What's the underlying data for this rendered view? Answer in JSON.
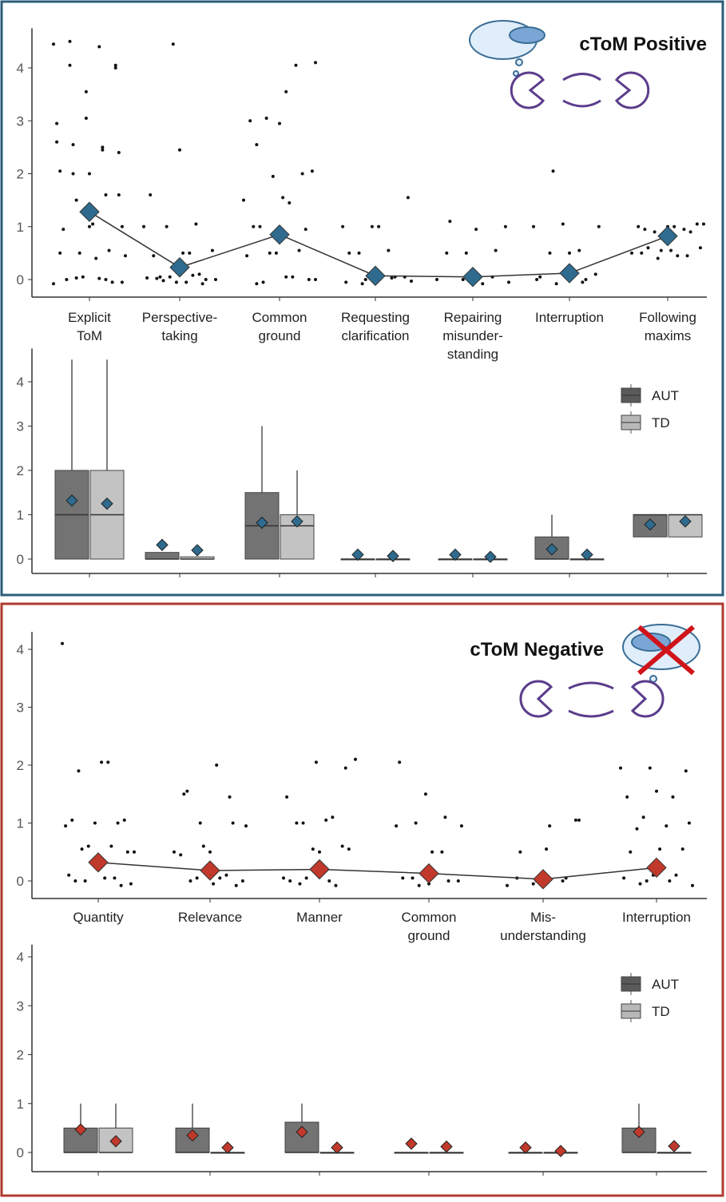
{
  "chart_data": [
    {
      "type": "dot",
      "title": "cToM Positive",
      "mean_color": "#2e6b8e",
      "categories": [
        [
          "Explicit",
          "ToM"
        ],
        [
          "Perspective-",
          "taking"
        ],
        [
          "Common",
          "ground"
        ],
        [
          "Requesting",
          "clarification"
        ],
        [
          "Repairing",
          "misunder-",
          "standing"
        ],
        [
          "Interruption"
        ],
        [
          "Following",
          "maxims"
        ]
      ],
      "means": [
        1.28,
        0.23,
        0.85,
        0.07,
        0.05,
        0.12,
        0.82
      ],
      "points": [
        [
          4.45,
          4.4,
          4.05,
          4.05,
          3.05,
          2.6,
          2.5,
          2.55,
          2.4,
          2.0,
          2.05,
          1.6,
          1.5,
          1.0,
          1.05,
          0.95,
          0.55,
          0.5,
          0.45,
          0.4,
          0.0,
          -0.05,
          0.05,
          -0.08,
          0.02,
          4.5,
          4.0,
          3.55,
          2.95,
          2.45,
          2.0,
          1.6,
          1.0,
          0.5,
          0,
          0.03,
          -0.05
        ],
        [
          2.45,
          1.6,
          1.05,
          1.0,
          0.55,
          0.5,
          0.45,
          0.1,
          0.05,
          0,
          -0.05,
          0.02,
          -0.08,
          4.45,
          1.0,
          0.5,
          0.05,
          0,
          -0.05,
          0.03,
          0.08,
          -0.02
        ],
        [
          4.1,
          3.55,
          2.55,
          2.0,
          1.95,
          1.5,
          1.45,
          1.0,
          0.95,
          0.5,
          0.45,
          0.05,
          -0.05,
          0,
          2.95,
          3.0,
          4.05,
          3.05,
          2.05,
          1.55,
          1.0,
          0.55,
          0.5,
          0,
          0.05,
          -0.08
        ],
        [
          1.0,
          1.0,
          0.55,
          0.5,
          0.05,
          0,
          -0.05,
          0.03,
          -0.08,
          1.55,
          1.0,
          0.5,
          0.05,
          0,
          -0.03
        ],
        [
          1.0,
          0.95,
          0.5,
          0.05,
          0,
          -0.05,
          0.03,
          1.1,
          0.55,
          0.5,
          0,
          -0.08
        ],
        [
          1.05,
          1.0,
          0.55,
          0.5,
          0.1,
          0.05,
          0,
          -0.05,
          2.05,
          1.0,
          0.5,
          0.05,
          0,
          -0.08
        ],
        [
          1.05,
          1.0,
          1.0,
          0.95,
          0.9,
          0.6,
          0.55,
          0.5,
          0.45,
          0.4,
          1.05,
          1.0,
          0.95,
          0.9,
          0.55,
          0.5,
          0.45,
          0.6
        ]
      ],
      "ylim": [
        -0.2,
        4.75
      ],
      "yticks": [
        0,
        1,
        2,
        3,
        4
      ]
    },
    {
      "type": "box",
      "mean_color": "#2e6b8e",
      "series": [
        {
          "name": "AUT",
          "color": "#5a5a5a",
          "q1": [
            0,
            0,
            0,
            0,
            0,
            0,
            0.5
          ],
          "median": [
            1,
            0,
            0.75,
            0,
            0,
            0,
            1
          ],
          "q3": [
            2,
            0.15,
            1.5,
            0,
            0,
            0.5,
            1
          ],
          "whisker_high": [
            4.5,
            0.15,
            3,
            0,
            0,
            1,
            1
          ],
          "mean": [
            1.32,
            0.32,
            0.82,
            0.1,
            0.1,
            0.22,
            0.78
          ]
        },
        {
          "name": "TD",
          "color": "#b8b8b8",
          "q1": [
            0,
            0,
            0,
            0,
            0,
            0,
            0.5
          ],
          "median": [
            1,
            0,
            0.75,
            0,
            0,
            0,
            1
          ],
          "q3": [
            2,
            0.05,
            1,
            0,
            0,
            0,
            1
          ],
          "whisker_high": [
            4.5,
            0.05,
            2,
            0,
            0,
            0,
            1
          ],
          "mean": [
            1.25,
            0.2,
            0.85,
            0.07,
            0.05,
            0.1,
            0.85
          ]
        }
      ],
      "ylim": [
        -0.2,
        4.75
      ],
      "yticks": [
        0,
        1,
        2,
        3,
        4
      ],
      "legend": "right"
    },
    {
      "type": "dot",
      "title": "cToM Negative",
      "mean_color": "#c0392b",
      "categories": [
        [
          "Quantity"
        ],
        [
          "Relevance"
        ],
        [
          "Manner"
        ],
        [
          "Common",
          "ground"
        ],
        [
          "Mis-",
          "understanding"
        ],
        [
          "Interruption"
        ]
      ],
      "means": [
        0.32,
        0.18,
        0.2,
        0.13,
        0.03,
        0.23
      ],
      "points": [
        [
          4.1,
          2.05,
          1.9,
          1.05,
          1.0,
          0.95,
          0.6,
          0.55,
          0.5,
          0.4,
          0.1,
          0.05,
          0,
          -0.05,
          2.05,
          1.05,
          1.0,
          0.6,
          0.5,
          0.05,
          0,
          -0.08
        ],
        [
          0.5,
          0.45,
          0.1,
          0.05,
          0,
          -0.05,
          1.5,
          1.45,
          1.0,
          0.95,
          2.0,
          1.55,
          1.0,
          0.6,
          0.5,
          0.05,
          0,
          -0.08
        ],
        [
          2.1,
          1.05,
          1.0,
          0.6,
          0.55,
          0.05,
          0,
          -0.05,
          1.95,
          2.05,
          1.45,
          1.1,
          1.0,
          0.55,
          0.5,
          0,
          -0.08,
          0.05
        ],
        [
          1.5,
          0.95,
          0.5,
          0.05,
          0,
          -0.05,
          2.05,
          1.1,
          1.0,
          0.95,
          0.5,
          0.05,
          0,
          -0.08
        ],
        [
          1.05,
          0.55,
          0.05,
          0,
          -0.05,
          1.05,
          0.95,
          0.5,
          0.05,
          0,
          -0.08
        ],
        [
          1.95,
          1.95,
          0.95,
          0.9,
          0.55,
          0.1,
          0.05,
          0,
          -0.05,
          1.9,
          1.55,
          1.45,
          1.45,
          1.1,
          1.0,
          0.55,
          0.5,
          0.1,
          0,
          -0.08
        ]
      ],
      "ylim": [
        -0.2,
        4.3
      ],
      "yticks": [
        0,
        1,
        2,
        3,
        4
      ]
    },
    {
      "type": "box",
      "mean_color": "#c0392b",
      "series": [
        {
          "name": "AUT",
          "color": "#5a5a5a",
          "q1": [
            0,
            0,
            0,
            0,
            0,
            0
          ],
          "median": [
            0,
            0,
            0,
            0,
            0,
            0
          ],
          "q3": [
            0.5,
            0.5,
            0.62,
            0,
            0,
            0.5
          ],
          "whisker_high": [
            1,
            1,
            1,
            0,
            0,
            1
          ],
          "mean": [
            0.47,
            0.35,
            0.42,
            0.18,
            0.1,
            0.42
          ]
        },
        {
          "name": "TD",
          "color": "#b8b8b8",
          "q1": [
            0,
            0,
            0,
            0,
            0,
            0
          ],
          "median": [
            0,
            0,
            0,
            0,
            0,
            0
          ],
          "q3": [
            0.5,
            0,
            0,
            0,
            0,
            0
          ],
          "whisker_high": [
            1,
            0,
            0,
            0,
            0,
            0
          ],
          "mean": [
            0.23,
            0.1,
            0.1,
            0.12,
            0.03,
            0.13
          ]
        }
      ],
      "ylim": [
        -0.2,
        4.25
      ],
      "yticks": [
        0,
        1,
        2,
        3,
        4
      ],
      "legend": "right"
    }
  ]
}
